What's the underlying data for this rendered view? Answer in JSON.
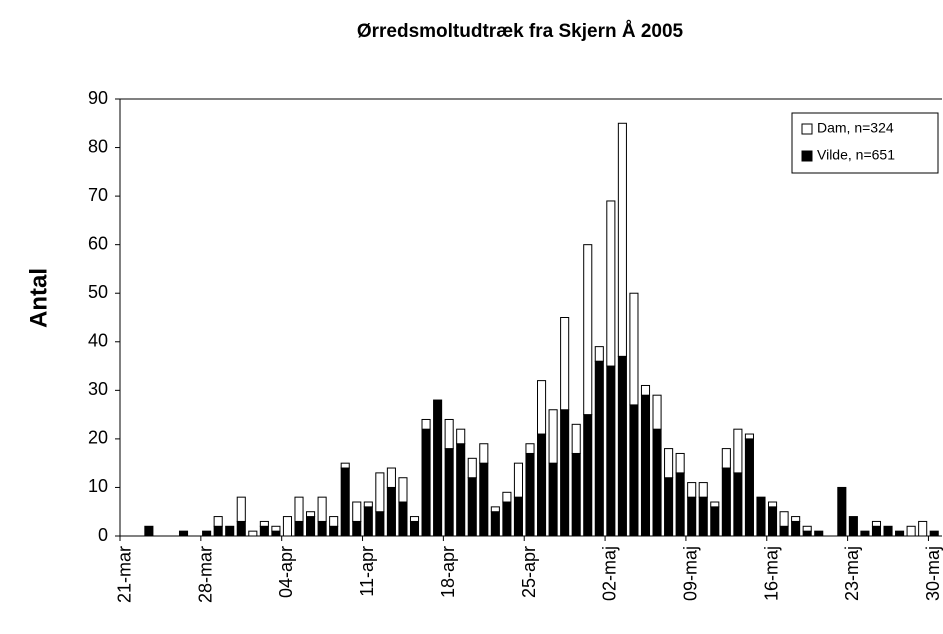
{
  "chart_data": {
    "type": "bar",
    "stacked": true,
    "title": "Ørredsmoltudtræk fra Skjern Å 2005",
    "y_label": "Antal",
    "categories": [
      "21-mar",
      null,
      null,
      null,
      null,
      null,
      null,
      "28-mar",
      null,
      null,
      null,
      null,
      null,
      null,
      "04-apr",
      null,
      null,
      null,
      null,
      null,
      null,
      "11-apr",
      null,
      null,
      null,
      null,
      null,
      null,
      "18-apr",
      null,
      null,
      null,
      null,
      null,
      null,
      "25-apr",
      null,
      null,
      null,
      null,
      null,
      null,
      "02-maj",
      null,
      null,
      null,
      null,
      null,
      null,
      "09-maj",
      null,
      null,
      null,
      null,
      null,
      null,
      "16-maj",
      null,
      null,
      null,
      null,
      null,
      null,
      "23-maj",
      null,
      null,
      null,
      null,
      null,
      null,
      "30-maj"
    ],
    "series": [
      {
        "name": "Dam, n=324",
        "color": "#ffffff",
        "values": [
          0,
          0,
          0,
          0,
          0,
          0,
          0,
          0,
          2,
          0,
          5,
          1,
          1,
          1,
          4,
          5,
          1,
          5,
          2,
          1,
          4,
          1,
          8,
          4,
          5,
          1,
          2,
          0,
          6,
          3,
          4,
          4,
          1,
          2,
          7,
          2,
          11,
          11,
          19,
          6,
          35,
          3,
          34,
          48,
          23,
          2,
          7,
          6,
          4,
          3,
          3,
          1,
          4,
          9,
          1,
          0,
          1,
          3,
          1,
          1,
          0,
          0,
          0,
          0,
          0,
          1,
          0,
          0,
          2,
          3,
          0
        ]
      },
      {
        "name": "Vilde, n=651",
        "color": "#000000",
        "values": [
          0,
          0,
          2,
          0,
          0,
          1,
          0,
          1,
          2,
          2,
          3,
          0,
          2,
          1,
          0,
          3,
          4,
          3,
          2,
          14,
          3,
          6,
          5,
          10,
          7,
          3,
          22,
          28,
          18,
          19,
          12,
          15,
          5,
          7,
          8,
          17,
          21,
          15,
          26,
          17,
          25,
          36,
          35,
          37,
          27,
          29,
          22,
          12,
          13,
          8,
          8,
          6,
          14,
          13,
          20,
          8,
          6,
          2,
          3,
          1,
          1,
          0,
          10,
          4,
          1,
          2,
          2,
          1,
          0,
          0,
          1
        ]
      }
    ],
    "ylim": [
      0,
      90
    ],
    "yticks": [
      0,
      10,
      20,
      30,
      40,
      50,
      60,
      70,
      80,
      90
    ],
    "legend": "top-right"
  }
}
